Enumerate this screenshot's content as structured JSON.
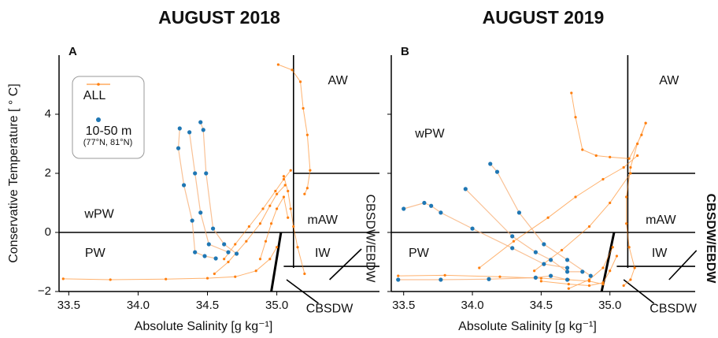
{
  "chart_data": [
    {
      "type": "line",
      "title": "AUGUST 2018",
      "panel": "A",
      "xlabel": "Absolute Salinity [g kg⁻¹]",
      "ylabel": "Conservative Temperature [ ° C]",
      "xlim": [
        33.43,
        35.74
      ],
      "ylim": [
        -2,
        6
      ],
      "xticks": [
        33.5,
        {
          "value": 34,
          "label": "34.0"
        },
        34.5,
        {
          "value": 35,
          "label": "35.0"
        }
      ],
      "yticks": [
        {
          "value": -2,
          "label": "−2"
        },
        0,
        2,
        4
      ],
      "show_ytick_labels": true,
      "legend": true,
      "legend_note": "(77°N, 81°N)",
      "series": [
        {
          "name": "ALL",
          "color": "#ff7f0e",
          "x": [
            35.01,
            35.11,
            35.17,
            35.19,
            35.22,
            35.24,
            35.22,
            35.2,
            null,
            33.46,
            33.8,
            34.2,
            34.5,
            34.7,
            34.85,
            34.95,
            35.0,
            null,
            34.62,
            34.7,
            34.8,
            34.9,
            34.99,
            35.05,
            35.1,
            null,
            34.55,
            34.65,
            34.78,
            34.88,
            34.95,
            35.0,
            35.06,
            null,
            34.88,
            34.92,
            34.96,
            35.0,
            35.05,
            35.08,
            null,
            35.05,
            35.08,
            35.1,
            35.12,
            35.15,
            35.2
          ],
          "values": [
            5.68,
            5.5,
            5.1,
            4.2,
            3.3,
            2.1,
            1.5,
            1.3,
            null,
            -1.57,
            -1.6,
            -1.58,
            -1.55,
            -1.5,
            -1.3,
            -0.9,
            -0.5,
            null,
            -0.9,
            -0.4,
            0.2,
            0.8,
            1.4,
            1.8,
            2.1,
            null,
            -1.4,
            -1.0,
            -0.3,
            0.3,
            0.9,
            1.3,
            1.6,
            null,
            -0.9,
            -0.3,
            0.3,
            0.8,
            1.2,
            0.5,
            null,
            1.9,
            1.4,
            0.8,
            0.2,
            -0.5,
            -1.4
          ]
        },
        {
          "name": "10-50 m",
          "color": "#1f77b4",
          "x": [
            34.3,
            34.29,
            34.33,
            34.39,
            34.41,
            34.48,
            34.56,
            null,
            34.37,
            34.41,
            34.45,
            34.51,
            34.65,
            null,
            34.45,
            34.47,
            34.49,
            34.54,
            34.62,
            34.71
          ],
          "values": [
            3.52,
            2.85,
            1.6,
            0.4,
            -0.67,
            -0.8,
            -0.88,
            null,
            3.39,
            2.0,
            0.67,
            -0.4,
            -0.67,
            null,
            3.73,
            3.47,
            2.0,
            0.13,
            -0.4,
            -0.72
          ]
        }
      ],
      "boundaries": [
        {
          "x": [
            33.43,
            35.74
          ],
          "y": [
            0,
            0
          ]
        },
        {
          "x": [
            35.12,
            35.12
          ],
          "y": [
            6,
            -1.2
          ]
        },
        {
          "x": [
            35.12,
            35.74
          ],
          "y": [
            2,
            2
          ]
        },
        {
          "x": [
            35.05,
            35.74
          ],
          "y": [
            -1.15,
            -1.15
          ]
        },
        {
          "x": [
            35.03,
            34.96
          ],
          "y": [
            0,
            -2
          ],
          "thick": true
        },
        {
          "x": [
            35.38,
            35.61
          ],
          "y": [
            -1.6,
            -0.56
          ]
        },
        {
          "x": [
            35.07,
            35.3
          ],
          "y": [
            -1.6,
            -2.4
          ]
        }
      ],
      "region_labels": [
        {
          "text": "AW",
          "x": 35.44,
          "y": 5.12
        },
        {
          "text": "mAW",
          "x": 35.33,
          "y": 0.4
        },
        {
          "text": "IW",
          "x": 35.33,
          "y": -0.72
        },
        {
          "text": "wPW",
          "x": 33.72,
          "y": 0.61
        },
        {
          "text": "PW",
          "x": 33.69,
          "y": -0.72
        },
        {
          "text": "CBSDW",
          "x": 35.38,
          "y": -2.6
        }
      ],
      "side_label": {
        "text": "CBSDW/EBDW",
        "x": 35.67,
        "y": -0.2,
        "bold": false
      }
    },
    {
      "type": "line",
      "title": "AUGUST 2019",
      "panel": "B",
      "xlabel": "Absolute Salinity [g kg⁻¹]",
      "xlim": [
        33.41,
        35.62
      ],
      "ylim": [
        -2,
        6
      ],
      "xticks": [
        33.5,
        {
          "value": 34,
          "label": "34.0"
        },
        34.5,
        {
          "value": 35,
          "label": "35.0"
        }
      ],
      "yticks": [
        -2,
        0,
        2,
        4
      ],
      "show_ytick_labels": false,
      "legend": false,
      "series": [
        {
          "name": "ALL",
          "color": "#ff7f0e",
          "x": [
            34.72,
            34.75,
            34.8,
            34.9,
            35.0,
            35.14,
            35.23,
            35.26,
            null,
            35.26,
            35.2,
            35.15,
            35.12,
            35.12,
            35.14,
            35.18,
            35.15,
            35.1,
            null,
            34.05,
            34.3,
            34.55,
            34.75,
            34.95,
            35.1,
            35.2,
            null,
            34.45,
            34.65,
            34.85,
            35.0,
            35.15,
            null,
            33.46,
            33.8,
            34.2,
            34.5,
            34.7,
            34.85,
            34.95,
            null,
            34.5,
            34.7,
            34.85,
            34.95,
            35.0,
            35.05,
            null,
            34.7,
            34.85,
            34.95,
            35.02
          ],
          "values": [
            4.72,
            3.9,
            2.8,
            2.6,
            2.55,
            2.5,
            3.3,
            3.7,
            null,
            3.7,
            3.0,
            2.2,
            1.2,
            0.3,
            -0.5,
            -1.2,
            -1.6,
            -1.8,
            null,
            -1.2,
            -0.3,
            0.5,
            1.2,
            1.8,
            2.2,
            2.6,
            null,
            -1.3,
            -0.6,
            0.2,
            1.0,
            2.0,
            null,
            -1.47,
            -1.45,
            -1.5,
            -1.55,
            -1.6,
            -1.65,
            -1.75,
            null,
            -1.65,
            -1.75,
            -1.8,
            -1.7,
            -1.3,
            -0.8,
            null,
            -1.9,
            -1.6,
            -1.2,
            -0.5
          ]
        },
        {
          "name": "10-50 m",
          "color": "#1f77b4",
          "x": [
            33.5,
            33.65,
            33.7,
            33.77,
            34.0,
            34.29,
            34.52,
            34.69,
            null,
            33.95,
            34.29,
            34.46,
            34.57,
            34.69,
            34.8,
            null,
            34.13,
            34.18,
            34.34,
            34.52,
            34.69,
            34.86,
            null,
            33.46,
            33.77,
            34.12,
            34.46,
            34.57,
            34.69
          ],
          "values": [
            0.8,
            1.0,
            0.9,
            0.67,
            0.13,
            -0.53,
            -1.07,
            -1.2,
            null,
            1.47,
            -0.13,
            -0.67,
            -0.93,
            -1.33,
            -1.33,
            null,
            2.32,
            2.05,
            0.67,
            -0.4,
            -0.93,
            -1.47,
            null,
            -1.6,
            -1.6,
            -1.58,
            -1.53,
            -1.47,
            -1.6
          ]
        }
      ],
      "boundaries": [
        {
          "x": [
            33.41,
            35.62
          ],
          "y": [
            0,
            0
          ]
        },
        {
          "x": [
            35.13,
            35.13
          ],
          "y": [
            6,
            -1.2
          ]
        },
        {
          "x": [
            35.13,
            35.62
          ],
          "y": [
            2,
            2
          ]
        },
        {
          "x": [
            35.05,
            35.62
          ],
          "y": [
            -1.15,
            -1.15
          ]
        },
        {
          "x": [
            35.03,
            34.94
          ],
          "y": [
            0,
            -2
          ],
          "thick": true
        },
        {
          "x": [
            35.43,
            35.63
          ],
          "y": [
            -1.6,
            -0.61
          ]
        },
        {
          "x": [
            35.1,
            35.32
          ],
          "y": [
            -1.6,
            -2.4
          ]
        }
      ],
      "region_labels": [
        {
          "text": "AW",
          "x": 35.43,
          "y": 5.12
        },
        {
          "text": "wPW",
          "x": 33.69,
          "y": 3.33
        },
        {
          "text": "mAW",
          "x": 35.37,
          "y": 0.4
        },
        {
          "text": "IW",
          "x": 35.36,
          "y": -0.72
        },
        {
          "text": "PW",
          "x": 33.61,
          "y": -0.72
        },
        {
          "text": "CBSDW",
          "x": 35.46,
          "y": -2.6
        }
      ],
      "side_label": {
        "text": "CBSDW/EBDW",
        "x": 35.73,
        "y": -0.2,
        "bold": true
      }
    }
  ]
}
